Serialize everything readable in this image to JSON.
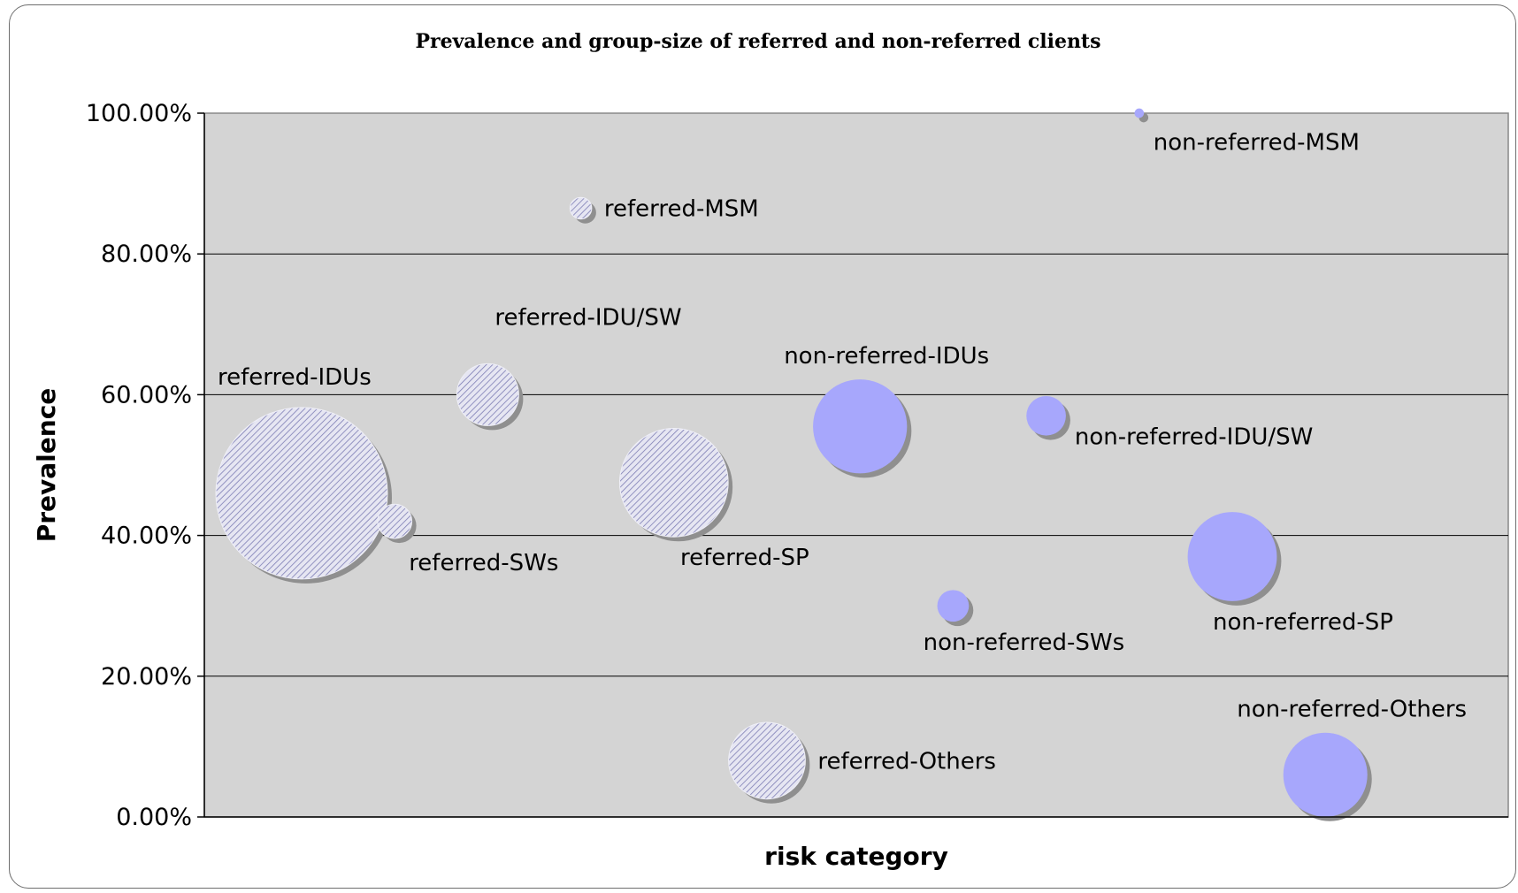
{
  "chart_data": {
    "type": "bubble",
    "title": "Prevalence and group-size of referred and non-referred clients",
    "xlabel": "risk category",
    "ylabel": "Prevalence",
    "ylim": [
      0,
      1
    ],
    "yticks": [
      "0.00%",
      "20.00%",
      "40.00%",
      "60.00%",
      "80.00%",
      "100.00%"
    ],
    "grid": "horizontal",
    "colors": {
      "plot_background": "#d4d4d4",
      "referred": "#e6e6f2",
      "referred_hatch": "#7d7db4",
      "non_referred": "#a7a7fc",
      "shadow": "#8f8f8f",
      "frame": "#6e6e6e"
    },
    "series": [
      {
        "group": "referred",
        "points": [
          {
            "label": "referred-IDUs",
            "x": 1,
            "y": 0.46,
            "size": 1000,
            "label_position": "above-left"
          },
          {
            "label": "referred-SWs",
            "x": 2,
            "y": 0.42,
            "size": 40,
            "label_position": "below-right"
          },
          {
            "label": "referred-IDU/SW",
            "x": 3,
            "y": 0.6,
            "size": 130,
            "label_position": "above-right"
          },
          {
            "label": "referred-MSM",
            "x": 4,
            "y": 0.865,
            "size": 16,
            "label_position": "right"
          },
          {
            "label": "referred-SP",
            "x": 5,
            "y": 0.475,
            "size": 400,
            "label_position": "below"
          },
          {
            "label": "referred-Others",
            "x": 6,
            "y": 0.08,
            "size": 200,
            "label_position": "right"
          }
        ]
      },
      {
        "group": "non-referred",
        "points": [
          {
            "label": "non-referred-IDUs",
            "x": 7,
            "y": 0.555,
            "size": 300,
            "label_position": "above"
          },
          {
            "label": "non-referred-SWs",
            "x": 8,
            "y": 0.3,
            "size": 34,
            "label_position": "below"
          },
          {
            "label": "non-referred-IDU/SW",
            "x": 9,
            "y": 0.57,
            "size": 53,
            "label_position": "right-below"
          },
          {
            "label": "non-referred-MSM",
            "x": 10,
            "y": 1.0,
            "size": 3,
            "label_position": "below-right"
          },
          {
            "label": "non-referred-SP",
            "x": 11,
            "y": 0.37,
            "size": 270,
            "label_position": "below"
          },
          {
            "label": "non-referred-Others",
            "x": 12,
            "y": 0.06,
            "size": 240,
            "label_position": "above"
          }
        ]
      }
    ]
  }
}
